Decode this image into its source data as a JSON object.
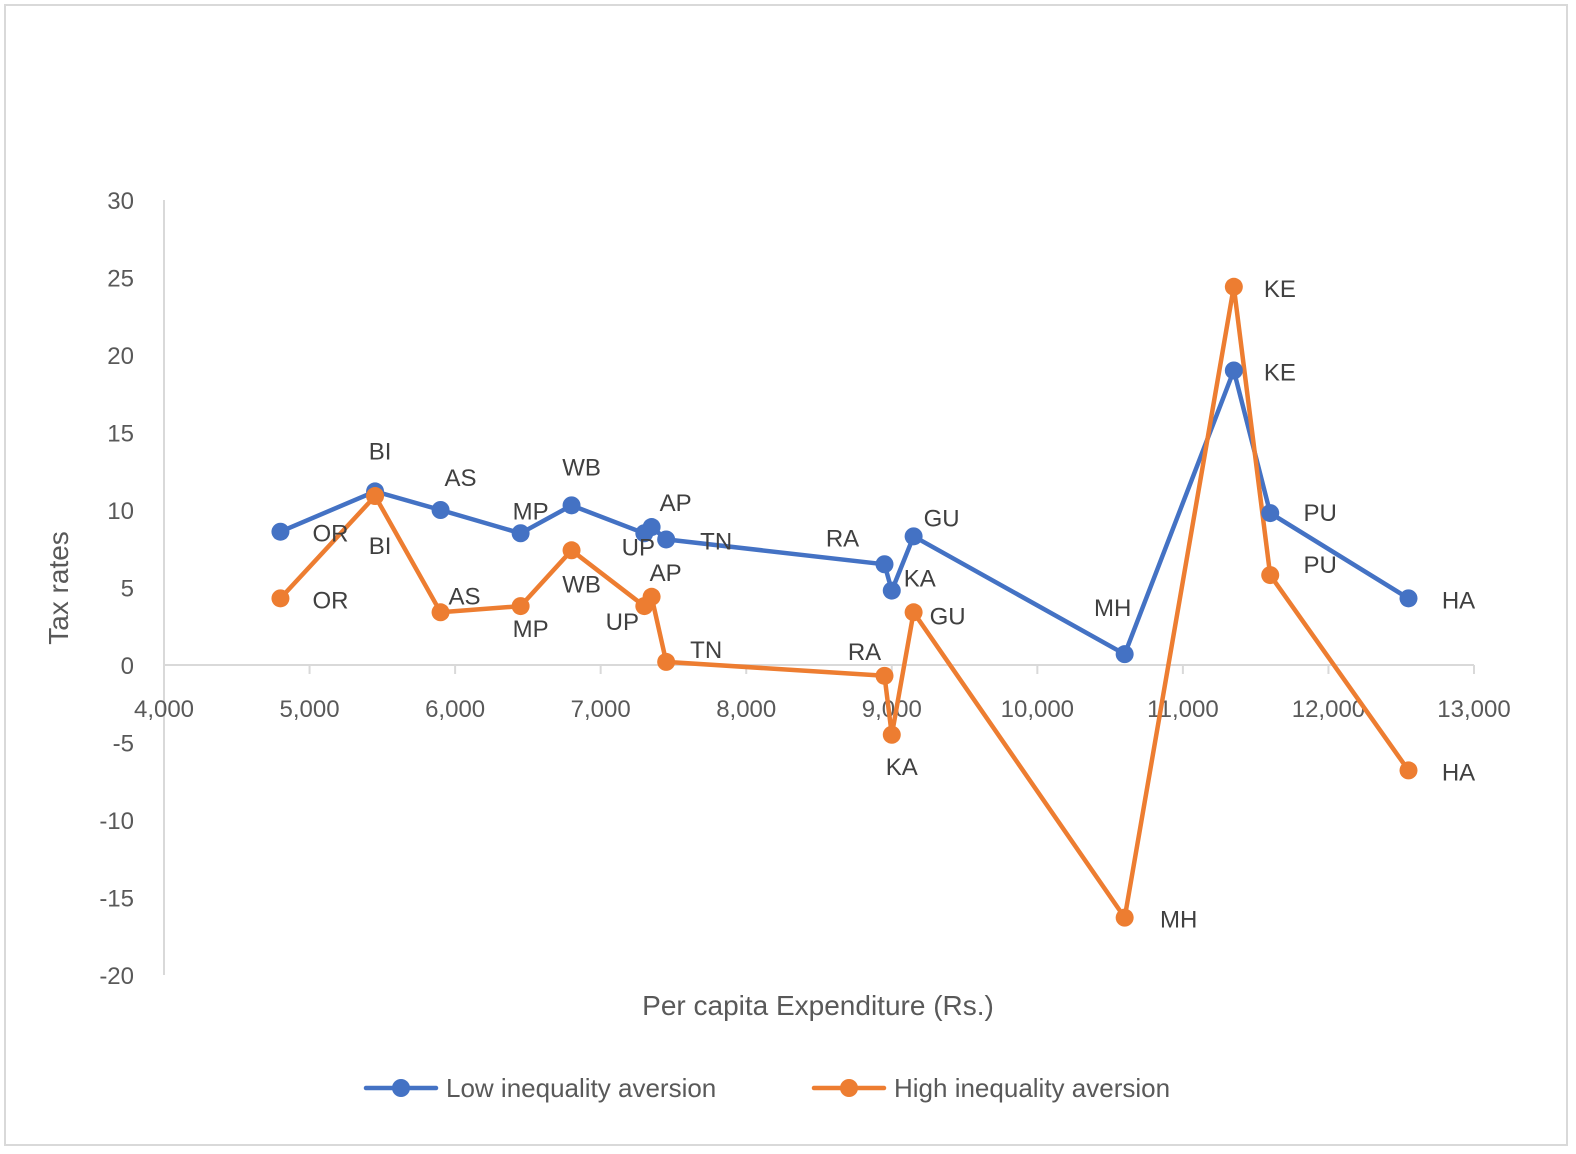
{
  "chart_data": {
    "type": "line",
    "title": "",
    "xlabel": "Per capita Expenditure (Rs.)",
    "ylabel": "Tax rates",
    "xlim": [
      4000,
      13000
    ],
    "ylim": [
      -20,
      30
    ],
    "x_ticks": [
      4000,
      5000,
      6000,
      7000,
      8000,
      9000,
      10000,
      11000,
      12000,
      13000
    ],
    "x_tick_labels": [
      "4,000",
      "5,000",
      "6,000",
      "7,000",
      "8,000",
      "9,000",
      "10,000",
      "11,000",
      "12,000",
      "13,000"
    ],
    "y_ticks": [
      30,
      25,
      20,
      15,
      10,
      5,
      0,
      -5,
      -10,
      -15,
      -20
    ],
    "y_tick_labels": [
      "30",
      "25",
      "20",
      "15",
      "10",
      "5",
      "0",
      "-5",
      "-10",
      "-15",
      "-20"
    ],
    "legend_position": "bottom",
    "series": [
      {
        "name": "Low inequality aversion",
        "color": "#4472c4",
        "points": [
          {
            "label": "OR",
            "x": 4800,
            "y": 8.6
          },
          {
            "label": "BI",
            "x": 5450,
            "y": 11.2
          },
          {
            "label": "AS",
            "x": 5900,
            "y": 10.0
          },
          {
            "label": "MP",
            "x": 6450,
            "y": 8.5
          },
          {
            "label": "WB",
            "x": 6800,
            "y": 10.3
          },
          {
            "label": "UP",
            "x": 7300,
            "y": 8.5
          },
          {
            "label": "AP",
            "x": 7350,
            "y": 8.9
          },
          {
            "label": "TN",
            "x": 7450,
            "y": 8.1
          },
          {
            "label": "RA",
            "x": 8950,
            "y": 6.5
          },
          {
            "label": "KA",
            "x": 9000,
            "y": 4.8
          },
          {
            "label": "GU",
            "x": 9150,
            "y": 8.3
          },
          {
            "label": "MH",
            "x": 10600,
            "y": 0.7
          },
          {
            "label": "KE",
            "x": 11350,
            "y": 19.0
          },
          {
            "label": "PU",
            "x": 11600,
            "y": 9.8
          },
          {
            "label": "HA",
            "x": 12550,
            "y": 4.3
          }
        ]
      },
      {
        "name": "High inequality aversion",
        "color": "#ed7d31",
        "points": [
          {
            "label": "OR",
            "x": 4800,
            "y": 4.3
          },
          {
            "label": "BI",
            "x": 5450,
            "y": 10.9
          },
          {
            "label": "AS",
            "x": 5900,
            "y": 3.4
          },
          {
            "label": "MP",
            "x": 6450,
            "y": 3.8
          },
          {
            "label": "WB",
            "x": 6800,
            "y": 7.4
          },
          {
            "label": "UP",
            "x": 7300,
            "y": 3.8
          },
          {
            "label": "AP",
            "x": 7350,
            "y": 4.4
          },
          {
            "label": "TN",
            "x": 7450,
            "y": 0.2
          },
          {
            "label": "RA",
            "x": 8950,
            "y": -0.7
          },
          {
            "label": "KA",
            "x": 9000,
            "y": -4.5
          },
          {
            "label": "GU",
            "x": 9150,
            "y": 3.4
          },
          {
            "label": "MH",
            "x": 10600,
            "y": -16.3
          },
          {
            "label": "KE",
            "x": 11350,
            "y": 24.4
          },
          {
            "label": "PU",
            "x": 11600,
            "y": 5.8
          },
          {
            "label": "HA",
            "x": 12550,
            "y": -6.8
          }
        ]
      }
    ]
  }
}
